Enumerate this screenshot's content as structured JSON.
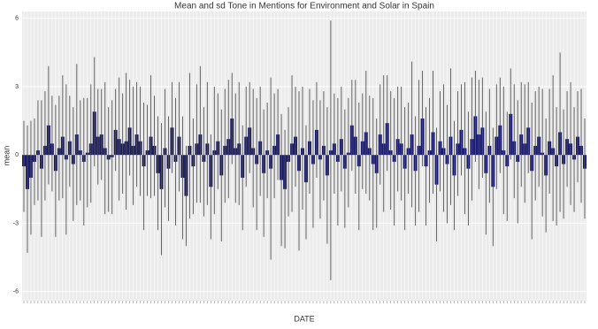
{
  "chart_data": {
    "type": "bar",
    "title": "Mean and sd Tone in Mentions for Environment and Solar in Spain",
    "x_label": "DATE",
    "y_label": "mean",
    "categories": [
      null,
      null,
      null,
      null,
      null,
      null,
      null,
      null,
      null,
      null,
      null,
      null,
      null,
      null,
      null,
      null,
      null,
      null,
      null,
      null,
      null,
      null,
      null,
      null,
      null,
      null,
      null,
      null,
      null,
      null,
      null,
      null,
      null,
      null,
      null,
      null,
      null,
      null,
      null,
      null,
      null,
      null,
      null,
      null,
      null,
      null,
      null,
      null,
      null,
      null,
      null,
      null,
      null,
      null,
      null,
      null,
      null,
      null,
      null,
      null,
      null,
      null,
      null,
      null,
      null,
      null,
      null,
      null,
      null,
      null,
      null,
      null,
      null,
      null,
      null,
      null,
      null,
      null,
      null,
      null,
      null,
      null,
      null,
      null,
      null,
      null,
      null,
      null,
      null,
      null,
      null,
      null,
      null,
      null,
      null,
      null,
      null,
      null,
      null,
      null,
      null,
      null,
      null,
      null,
      null,
      null,
      null,
      null,
      null,
      null,
      null,
      null,
      null,
      null,
      null,
      null,
      null,
      null,
      null,
      null,
      null,
      null,
      null,
      null,
      null,
      null,
      null,
      null,
      null,
      null,
      null,
      null,
      null,
      null,
      null,
      null,
      null,
      null,
      null,
      null,
      null,
      null,
      null,
      null,
      null,
      null,
      null,
      null,
      null,
      null,
      null,
      null,
      null,
      null,
      null,
      null,
      null,
      null,
      null,
      null
    ],
    "series": [
      {
        "name": "mean",
        "color": "#191970",
        "values": [
          -0.5,
          -1.5,
          -1.0,
          -0.3,
          0.2,
          -0.6,
          0.4,
          1.3,
          0.5,
          -0.7,
          0.3,
          0.8,
          -0.2,
          0.6,
          -0.4,
          0.9,
          0.2,
          -0.3,
          0.1,
          0.5,
          1.9,
          0.8,
          0.9,
          0.3,
          -0.2,
          -0.1,
          1.1,
          0.7,
          0.5,
          0.6,
          1.2,
          0.4,
          0.9,
          0.6,
          -0.5,
          0.2,
          0.8,
          0.4,
          -0.8,
          -1.5,
          0.3,
          -0.6,
          1.2,
          -0.3,
          0.8,
          -1.0,
          -1.8,
          0.4,
          -0.5,
          0.5,
          0.9,
          -0.3,
          0.5,
          -1.4,
          0.2,
          0.6,
          -0.9,
          0.4,
          0.7,
          1.6,
          0.3,
          0.5,
          -1.0,
          0.8,
          1.2,
          0.3,
          -0.4,
          0.6,
          -0.8,
          0.2,
          -0.6,
          0.4,
          0.9,
          -1.1,
          -1.5,
          -0.3,
          0.5,
          0.8,
          -0.7,
          0.3,
          -1.2,
          0.6,
          -0.4,
          1.1,
          -0.2,
          0.4,
          -0.9,
          0.2,
          0.5,
          -0.3,
          0.7,
          -0.6,
          0.1,
          1.3,
          0.8,
          -0.5,
          0.6,
          1.0,
          0.3,
          -0.4,
          -0.8,
          0.9,
          0.5,
          1.4,
          0.2,
          -0.3,
          0.7,
          0.5,
          -0.6,
          0.3,
          0.9,
          -0.7,
          0.4,
          1.6,
          -0.5,
          0.2,
          1.0,
          -1.3,
          0.6,
          0.3,
          -0.4,
          0.8,
          -0.9,
          0.5,
          1.1,
          0.3,
          -0.6,
          0.7,
          1.7,
          0.9,
          1.2,
          -0.8,
          0.4,
          -1.4,
          0.8,
          1.3,
          0.2,
          -0.5,
          1.8,
          0.6,
          -0.3,
          0.9,
          0.5,
          1.2,
          -0.7,
          0.4,
          0.8,
          0.1,
          -0.9,
          0.6,
          0.3,
          -0.5,
          1.0,
          -0.4,
          0.7,
          0.5,
          -0.2,
          0.8,
          0.4,
          -0.6
        ]
      },
      {
        "name": "sd",
        "color": "#555555",
        "values": [
          2.0,
          2.8,
          2.5,
          1.9,
          2.2,
          3.0,
          2.4,
          2.6,
          2.1,
          2.9,
          2.3,
          2.7,
          3.3,
          2.0,
          2.5,
          3.1,
          2.2,
          2.8,
          2.4,
          2.6,
          2.4,
          2.1,
          2.0,
          2.9,
          2.3,
          2.5,
          1.8,
          2.7,
          2.2,
          3.0,
          2.1,
          2.6,
          2.3,
          2.4,
          2.8,
          2.0,
          2.7,
          2.2,
          2.5,
          2.9,
          2.6,
          2.3,
          2.0,
          2.8,
          2.4,
          2.7,
          2.2,
          3.2,
          2.1,
          2.6,
          3.0,
          2.4,
          2.7,
          2.3,
          2.8,
          2.1,
          2.9,
          2.5,
          2.6,
          2.0,
          2.4,
          2.7,
          2.3,
          2.2,
          2.0,
          2.6,
          2.9,
          2.4,
          2.8,
          2.1,
          4.0,
          2.3,
          2.0,
          2.9,
          2.6,
          2.4,
          3.0,
          2.2,
          3.5,
          2.7,
          2.5,
          2.3,
          2.8,
          2.1,
          2.6,
          2.4,
          3.0,
          5.7,
          2.2,
          2.8,
          2.3,
          2.6,
          2.4,
          2.0,
          2.5,
          2.8,
          2.1,
          2.7,
          2.3,
          2.9,
          2.4,
          2.2,
          3.0,
          2.1,
          2.6,
          2.8,
          2.3,
          2.5,
          2.7,
          2.0,
          3.2,
          2.4,
          2.9,
          2.1,
          2.6,
          2.3,
          2.7,
          2.5,
          2.2,
          2.8,
          2.6,
          3.0,
          2.4,
          2.3,
          2.0,
          2.9,
          2.5,
          2.7,
          2.0,
          2.4,
          2.2,
          2.7,
          2.5,
          2.6,
          2.3,
          2.1,
          2.8,
          2.4,
          2.0,
          2.5,
          2.7,
          2.3,
          2.6,
          2.0,
          3.0,
          2.4,
          2.2,
          2.8,
          2.5,
          2.3,
          3.2,
          2.6,
          3.5,
          2.4,
          2.1,
          2.7,
          2.3,
          2.0,
          2.5,
          2.2
        ]
      }
    ],
    "ylim": [
      -6.4,
      6.3
    ],
    "yticks": [
      -6,
      -3,
      0,
      3,
      6
    ],
    "grid": true
  }
}
